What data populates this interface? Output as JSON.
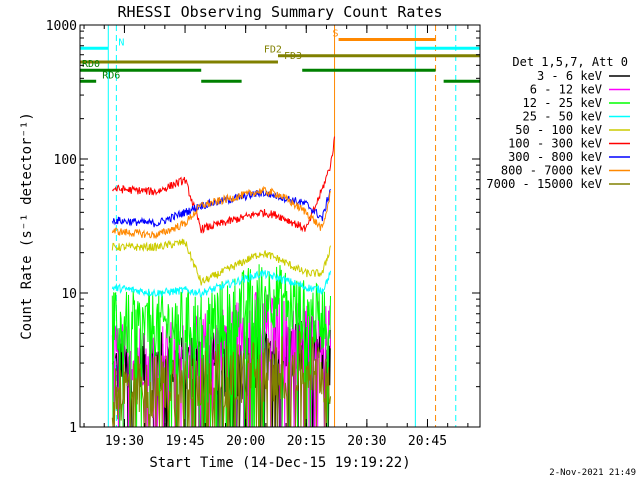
{
  "chart_data": {
    "type": "line",
    "title": "RHESSI Observing Summary Count Rates",
    "xlabel": "Start Time (14-Dec-15 19:19:22)",
    "ylabel": "Count Rate (s⁻¹ detector⁻¹)",
    "y_scale": "log",
    "xlim": [
      "19:19",
      "20:58"
    ],
    "ylim": [
      1,
      1000
    ],
    "x_ticks": [
      "19:30",
      "19:45",
      "20:00",
      "20:15",
      "20:30",
      "20:45"
    ],
    "y_ticks": [
      "1",
      "10",
      "100",
      "1000"
    ],
    "legend_title": "Det 1,5,7, Att 0",
    "legend_position": "right",
    "series": [
      {
        "name": "3 - 6 keV",
        "color": "#000000",
        "points": [
          [
            "19:27",
            2.5
          ],
          [
            "19:38",
            3.0
          ],
          [
            "19:45",
            2.8
          ],
          [
            "19:49",
            3.0
          ],
          [
            "20:00",
            2.8
          ],
          [
            "20:15",
            4.0
          ],
          [
            "20:21",
            3.2
          ]
        ]
      },
      {
        "name": "6 - 12 keV",
        "color": "#ff00ff",
        "points": [
          [
            "19:27",
            3.5
          ],
          [
            "19:38",
            3.5
          ],
          [
            "19:45",
            3.5
          ],
          [
            "19:49",
            4.0
          ],
          [
            "20:03",
            6.0
          ],
          [
            "20:08",
            5.5
          ],
          [
            "20:15",
            5.0
          ],
          [
            "20:21",
            5.5
          ]
        ]
      },
      {
        "name": "12 - 25 keV",
        "color": "#00ff00",
        "points": [
          [
            "19:27",
            5.8
          ],
          [
            "19:38",
            5.8
          ],
          [
            "19:45",
            6.0
          ],
          [
            "19:49",
            6.0
          ],
          [
            "20:04",
            10.0
          ],
          [
            "20:08",
            9.5
          ],
          [
            "20:15",
            7.0
          ],
          [
            "20:19",
            6.5
          ],
          [
            "20:21",
            8.0
          ]
        ]
      },
      {
        "name": "25 - 50 keV",
        "color": "#00ffff",
        "points": [
          [
            "19:27",
            11
          ],
          [
            "19:38",
            10
          ],
          [
            "19:45",
            10.5
          ],
          [
            "19:49",
            10
          ],
          [
            "20:04",
            14
          ],
          [
            "20:08",
            13
          ],
          [
            "20:15",
            11
          ],
          [
            "20:19",
            10.5
          ],
          [
            "20:21",
            14
          ]
        ]
      },
      {
        "name": "50 - 100 keV",
        "color": "#cccc00",
        "points": [
          [
            "19:27",
            22
          ],
          [
            "19:38",
            22
          ],
          [
            "19:45",
            24
          ],
          [
            "19:49",
            12
          ],
          [
            "20:04",
            20
          ],
          [
            "20:08",
            18
          ],
          [
            "20:15",
            14
          ],
          [
            "20:19",
            14
          ],
          [
            "20:21",
            22
          ]
        ]
      },
      {
        "name": "100 - 300 keV",
        "color": "#ff0000",
        "points": [
          [
            "19:27",
            60
          ],
          [
            "19:38",
            57
          ],
          [
            "19:45",
            70
          ],
          [
            "19:49",
            30
          ],
          [
            "20:04",
            40
          ],
          [
            "20:08",
            38
          ],
          [
            "20:15",
            30
          ],
          [
            "20:19",
            60
          ],
          [
            "20:21",
            90
          ],
          [
            "20:22",
            140
          ]
        ]
      },
      {
        "name": "300 - 800 keV",
        "color": "#0000ff",
        "points": [
          [
            "19:27",
            35
          ],
          [
            "19:38",
            33
          ],
          [
            "19:45",
            40
          ],
          [
            "19:49",
            45
          ],
          [
            "20:04",
            56
          ],
          [
            "20:08",
            53
          ],
          [
            "20:15",
            46
          ],
          [
            "20:19",
            36
          ],
          [
            "20:21",
            60
          ]
        ]
      },
      {
        "name": "800 - 7000 keV",
        "color": "#ff8800",
        "points": [
          [
            "19:27",
            29
          ],
          [
            "19:38",
            27
          ],
          [
            "19:45",
            33
          ],
          [
            "19:49",
            45
          ],
          [
            "20:04",
            58
          ],
          [
            "20:08",
            55
          ],
          [
            "20:15",
            40
          ],
          [
            "20:19",
            30
          ],
          [
            "20:21",
            55
          ]
        ]
      },
      {
        "name": "7000 - 15000 keV",
        "color": "#808000",
        "points": [
          [
            "19:27",
            1.9
          ],
          [
            "19:38",
            2.0
          ],
          [
            "19:45",
            2.2
          ],
          [
            "19:49",
            2.3
          ],
          [
            "20:00",
            2.5
          ],
          [
            "20:15",
            3.0
          ],
          [
            "20:21",
            2.5
          ]
        ]
      }
    ],
    "flag_bars": [
      {
        "label": "N",
        "color": "#00ffff",
        "segments": [
          [
            "19:19",
            "19:26"
          ],
          [
            "20:42",
            "20:58"
          ]
        ],
        "label_at": "19:28",
        "value": 670
      },
      {
        "label": "S",
        "color": "#ff8800",
        "segments": [
          [
            "20:23",
            "20:47"
          ]
        ],
        "label_at": "20:21",
        "value": 780
      },
      {
        "label": "FD2",
        "color": "#808000",
        "segments": [
          [
            "20:08",
            "20:58"
          ]
        ],
        "label_at": "20:04",
        "value": 590
      },
      {
        "label": "FD3",
        "color": "#808000",
        "segments": [
          [
            "19:19",
            "20:08"
          ]
        ],
        "label_at": "20:09",
        "value": 530
      },
      {
        "label": "RD0",
        "color": "#008000",
        "segments": [
          [
            "19:19",
            "19:49"
          ],
          [
            "20:14",
            "20:47"
          ]
        ],
        "label_at": "19:19",
        "value": 460
      },
      {
        "label": "RD6",
        "color": "#008000",
        "segments": [
          [
            "19:19",
            "19:23"
          ],
          [
            "19:49",
            "19:59"
          ],
          [
            "20:49",
            "20:58"
          ]
        ],
        "label_at": "19:24",
        "value": 380
      }
    ],
    "vertical_lines": [
      {
        "time": "19:19",
        "color": "#00ffff",
        "style": "solid"
      },
      {
        "time": "19:26",
        "color": "#00ffff",
        "style": "solid"
      },
      {
        "time": "19:28",
        "color": "#00ffff",
        "style": "dashed"
      },
      {
        "time": "20:22",
        "color": "#ff8800",
        "style": "solid"
      },
      {
        "time": "20:42",
        "color": "#00ffff",
        "style": "solid"
      },
      {
        "time": "20:47",
        "color": "#ff8800",
        "style": "dashed"
      },
      {
        "time": "20:52",
        "color": "#00ffff",
        "style": "dashed"
      }
    ],
    "timestamp": "2-Nov-2021 21:49"
  }
}
